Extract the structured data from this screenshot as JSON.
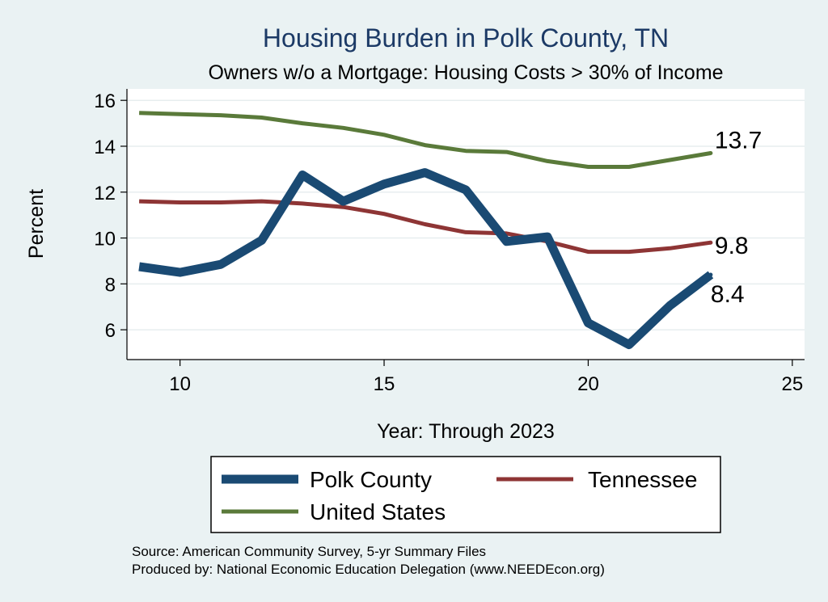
{
  "chart_data": {
    "type": "line",
    "title": "Housing Burden in Polk County, TN",
    "subtitle": "Owners w/o a Mortgage: Housing Costs > 30% of Income",
    "xlabel": "Year: Through 2023",
    "ylabel": "Percent",
    "xlim": [
      8.7,
      25.3
    ],
    "ylim": [
      4.7,
      16.5
    ],
    "xticks": [
      10,
      15,
      20,
      25
    ],
    "yticks": [
      6,
      8,
      10,
      12,
      14,
      16
    ],
    "grid": true,
    "legend_position": "bottom",
    "x": [
      9,
      10,
      11,
      12,
      13,
      14,
      15,
      16,
      17,
      18,
      19,
      20,
      21,
      22,
      23
    ],
    "series": [
      {
        "name": "Polk County",
        "color": "#1a4a73",
        "values": [
          8.75,
          8.5,
          8.85,
          9.9,
          12.75,
          11.6,
          12.35,
          12.85,
          12.1,
          9.85,
          10.05,
          6.3,
          5.35,
          7.05,
          8.4
        ],
        "end_label": "8.4"
      },
      {
        "name": "Tennessee",
        "color": "#8e3535",
        "values": [
          11.6,
          11.55,
          11.55,
          11.6,
          11.5,
          11.35,
          11.05,
          10.6,
          10.25,
          10.2,
          9.85,
          9.4,
          9.4,
          9.55,
          9.8
        ],
        "end_label": "9.8"
      },
      {
        "name": "United States",
        "color": "#5a7a3a",
        "values": [
          15.45,
          15.4,
          15.35,
          15.25,
          15.0,
          14.8,
          14.5,
          14.05,
          13.8,
          13.75,
          13.35,
          13.1,
          13.1,
          13.4,
          13.7
        ],
        "end_label": "13.7"
      }
    ]
  },
  "source": {
    "line1": "Source: American Community Survey, 5-yr Summary Files",
    "line2": "Produced by: National Economic Education Delegation (www.NEEDEcon.org)"
  }
}
